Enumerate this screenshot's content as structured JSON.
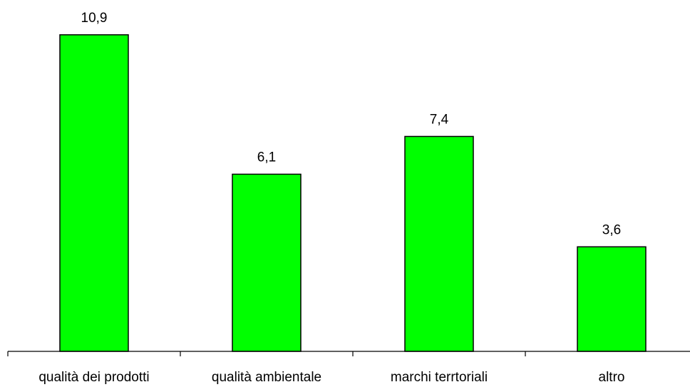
{
  "chart_data": {
    "type": "bar",
    "categories": [
      "qualità dei prodotti",
      "qualità ambientale",
      "marchi terrtoriali",
      "altro"
    ],
    "values": [
      10.9,
      6.1,
      7.4,
      3.6
    ],
    "value_labels": [
      "10,9",
      "6,1",
      "7,4",
      "3,6"
    ],
    "title": "",
    "xlabel": "",
    "ylabel": "",
    "ylim": [
      0,
      12
    ],
    "grid": false,
    "legend": "none",
    "bar_color": "#00ff00"
  }
}
